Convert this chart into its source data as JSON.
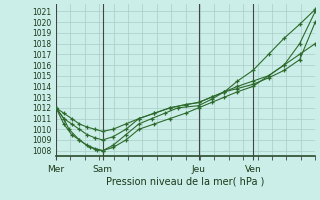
{
  "bg_color": "#cceee8",
  "grid_color": "#aaccc8",
  "line_color": "#2d6a2d",
  "marker_color": "#2d6a2d",
  "xlabel": "Pression niveau de la mer( hPa )",
  "ylim": [
    1007.5,
    1021.7
  ],
  "yticks": [
    1008,
    1009,
    1010,
    1011,
    1012,
    1013,
    1014,
    1015,
    1016,
    1017,
    1018,
    1019,
    1020,
    1021
  ],
  "xtick_labels": [
    "Mer",
    "Sam",
    "Jeu",
    "Ven"
  ],
  "xtick_positions": [
    0.0,
    0.18,
    0.55,
    0.76
  ],
  "vline_positions": [
    0.0,
    0.18,
    0.55,
    0.76
  ],
  "series": [
    {
      "x": [
        0.0,
        0.03,
        0.05,
        0.09,
        0.12,
        0.15,
        0.18,
        0.22,
        0.27,
        0.32,
        0.37,
        0.42,
        0.47,
        0.55,
        0.6,
        0.65,
        0.7,
        0.76,
        0.82,
        0.88,
        0.94,
        1.0
      ],
      "y": [
        1012,
        1011,
        1010,
        1009,
        1008.5,
        1008.2,
        1008,
        1008.5,
        1009.5,
        1010.5,
        1011,
        1011.5,
        1012,
        1012.2,
        1012.8,
        1013.5,
        1014.5,
        1015.5,
        1017,
        1018.5,
        1019.8,
        1021.2
      ]
    },
    {
      "x": [
        0.0,
        0.03,
        0.06,
        0.09,
        0.13,
        0.16,
        0.18,
        0.22,
        0.27,
        0.32,
        0.38,
        0.44,
        0.5,
        0.55,
        0.6,
        0.65,
        0.7,
        0.76,
        0.82,
        0.88,
        0.94,
        1.0
      ],
      "y": [
        1012,
        1010.5,
        1009.5,
        1009,
        1008.3,
        1008.1,
        1008,
        1008.3,
        1009,
        1010,
        1010.5,
        1011,
        1011.5,
        1012,
        1012.5,
        1013,
        1013.5,
        1014,
        1015,
        1016,
        1017,
        1018
      ]
    },
    {
      "x": [
        0.0,
        0.03,
        0.06,
        0.09,
        0.12,
        0.15,
        0.18,
        0.22,
        0.27,
        0.32,
        0.38,
        0.44,
        0.5,
        0.55,
        0.6,
        0.65,
        0.7,
        0.76,
        0.82,
        0.88,
        0.94,
        1.0
      ],
      "y": [
        1012,
        1011.5,
        1011,
        1010.5,
        1010.2,
        1010.0,
        1009.8,
        1010.0,
        1010.5,
        1011,
        1011.5,
        1012,
        1012.3,
        1012.5,
        1013,
        1013.5,
        1013.8,
        1014.2,
        1014.8,
        1015.5,
        1016.5,
        1020
      ]
    },
    {
      "x": [
        0.0,
        0.03,
        0.06,
        0.09,
        0.12,
        0.15,
        0.18,
        0.22,
        0.27,
        0.32,
        0.38,
        0.44,
        0.5,
        0.55,
        0.6,
        0.65,
        0.7,
        0.76,
        0.82,
        0.88,
        0.94,
        1.0
      ],
      "y": [
        1012,
        1011,
        1010.5,
        1010,
        1009.5,
        1009.2,
        1009,
        1009.3,
        1010,
        1011,
        1011.5,
        1012,
        1012.3,
        1012.5,
        1013,
        1013.5,
        1014,
        1014.5,
        1015,
        1016,
        1018,
        1021
      ]
    }
  ]
}
